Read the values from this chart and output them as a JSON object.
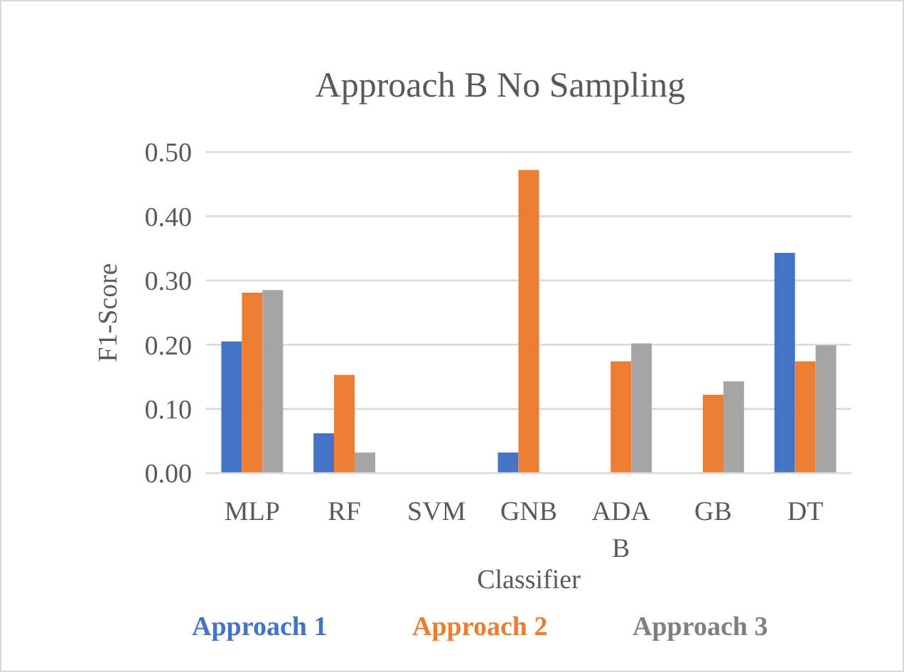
{
  "chart_data": {
    "type": "bar",
    "title": "Approach B No Sampling",
    "xlabel": "Classifier",
    "ylabel": "F1-Score",
    "categories": [
      "MLP",
      "RF",
      "SVM",
      "GNB",
      "ADA B",
      "GB",
      "DT"
    ],
    "series": [
      {
        "name": "Approach 1",
        "color": "#4472c4",
        "values": [
          0.205,
          0.062,
          0,
          0.032,
          0,
          0,
          0.343
        ]
      },
      {
        "name": "Approach 2",
        "color": "#ed7d31",
        "values": [
          0.281,
          0.153,
          0,
          0.472,
          0.174,
          0.122,
          0.174
        ]
      },
      {
        "name": "Approach 3",
        "color": "#a5a5a5",
        "values": [
          0.285,
          0.032,
          0,
          0,
          0.202,
          0.143,
          0.199
        ]
      }
    ],
    "ylim": [
      0,
      0.5
    ],
    "yticks": [
      {
        "value": 0,
        "label": "0.00"
      },
      {
        "value": 0.1,
        "label": "0.10"
      },
      {
        "value": 0.2,
        "label": "0.20"
      },
      {
        "value": 0.3,
        "label": "0.30"
      },
      {
        "value": 0.4,
        "label": "0.40"
      },
      {
        "value": 0.5,
        "label": "0.50"
      }
    ],
    "grid": "y",
    "legend": "bottom"
  }
}
